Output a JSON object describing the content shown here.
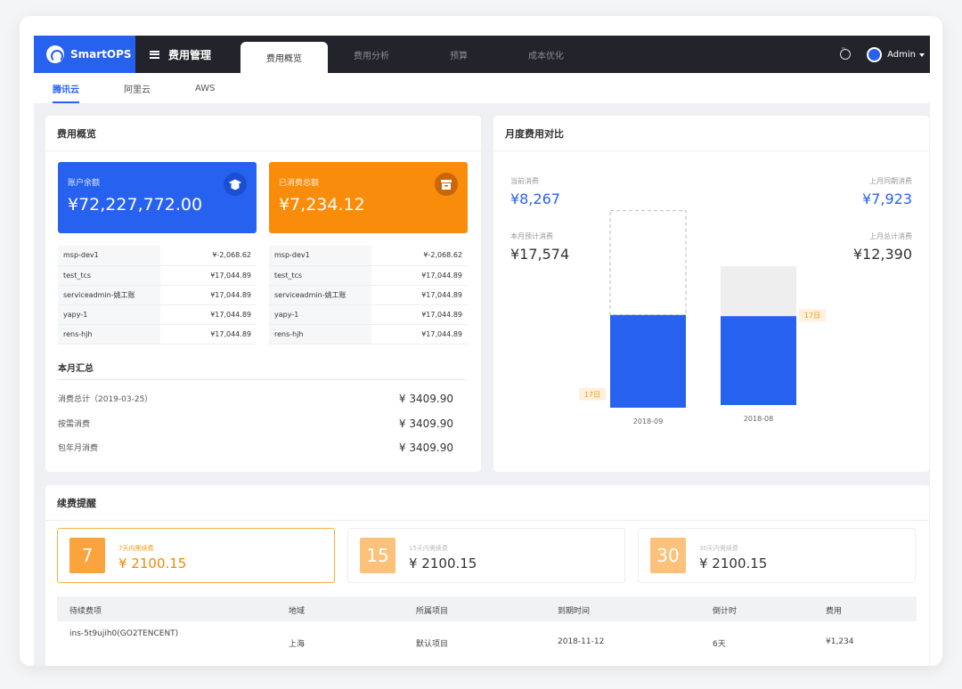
{
  "brand": "SmartOPS",
  "menu_title": "费用管理",
  "tabs": [
    "费用概览",
    "费用分析",
    "预算",
    "成本优化"
  ],
  "user": "Admin",
  "cloud_tabs": [
    "腾讯云",
    "阿里云",
    "AWS"
  ],
  "overview": {
    "title": "费用概览",
    "balance_label": "账户余额",
    "balance_value": "¥72,227,772.00",
    "spent_label": "已消费总额",
    "spent_value": "¥7,234.12",
    "left_rows": [
      {
        "k": "msp-dev1",
        "v": "¥-2,068.62"
      },
      {
        "k": "test_tcs",
        "v": "¥17,044.89"
      },
      {
        "k": "serviceadmin-姚工账",
        "v": "¥17,044.89"
      },
      {
        "k": "yapy-1",
        "v": "¥17,044.89"
      },
      {
        "k": "rens-hjh",
        "v": "¥17,044.89"
      }
    ],
    "right_rows": [
      {
        "k": "msp-dev1",
        "v": "¥-2,068.62"
      },
      {
        "k": "test_tcs",
        "v": "¥17,044.89"
      },
      {
        "k": "serviceadmin-姚工账",
        "v": "¥17,044.89"
      },
      {
        "k": "yapy-1",
        "v": "¥17,044.89"
      },
      {
        "k": "rens-hjh",
        "v": "¥17,044.89"
      }
    ],
    "month_title": "本月汇总",
    "month_rows": [
      {
        "k": "消费总计（2019-03-25）",
        "v": "¥ 3409.90"
      },
      {
        "k": "按需消费",
        "v": "¥ 3409.90"
      },
      {
        "k": "包年月消费",
        "v": "¥ 3409.90"
      }
    ]
  },
  "monthly": {
    "title": "月度费用对比",
    "current_label": "当前消费",
    "current_value": "¥8,267",
    "forecast_label": "本月预计消费",
    "forecast_value": "¥17,574",
    "last_same_label": "上月同期消费",
    "last_same_value": "¥7,923",
    "last_total_label": "上月总计消费",
    "last_total_value": "¥12,390",
    "day_marker": "17日"
  },
  "chart_data": {
    "type": "bar",
    "categories": [
      "2018-09",
      "2018-08"
    ],
    "series": [
      {
        "values": [
          8267,
          7923
        ]
      },
      {
        "values": [
          17574,
          12390
        ]
      }
    ],
    "annotations": [
      "17日",
      "17日"
    ]
  },
  "renewal": {
    "title": "续费提醒",
    "boxes": [
      {
        "num": "7",
        "label": "7天内需续费",
        "amount": "¥ 2100.15"
      },
      {
        "num": "15",
        "label": "15天内需续费",
        "amount": "¥ 2100.15"
      },
      {
        "num": "30",
        "label": "30天内需续费",
        "amount": "¥ 2100.15"
      }
    ],
    "headers": [
      "待续费项",
      "地域",
      "所属项目",
      "到期时间",
      "倒计时",
      "费用"
    ],
    "row": [
      "ins-5t9ujih0(GO2TENCENT)",
      "上海",
      "默认项目",
      "2018-11-12",
      "6天",
      "¥1,234"
    ]
  },
  "colors": {
    "blue": "#2761f0",
    "orange": "#f98c0a",
    "dark": "#23242b"
  }
}
